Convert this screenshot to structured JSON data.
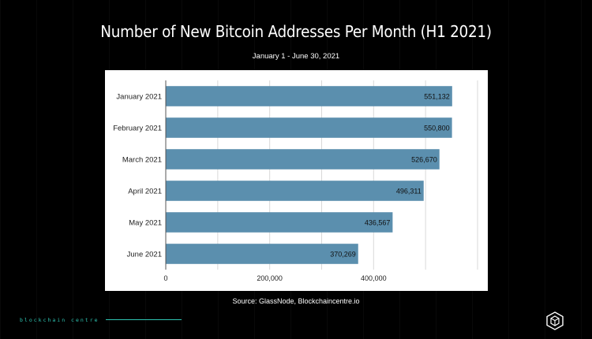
{
  "header": {
    "title": "Number of New Bitcoin Addresses Per Month (H1 2021)",
    "subtitle": "January  1 - June 30, 2021"
  },
  "footer": {
    "source": "Source: GlassNode, Blockchaincentre.io",
    "brand": "blockchain centre",
    "logo_icon": "hexagon-cube-icon"
  },
  "colors": {
    "bar": "#5b8fae",
    "background": "#000000",
    "panel": "#ffffff",
    "accent": "#2fc4b2"
  },
  "chart_data": {
    "type": "bar",
    "orientation": "horizontal",
    "title": "Number of New Bitcoin Addresses Per Month (H1 2021)",
    "subtitle": "January  1 - June 30, 2021",
    "categories": [
      "January 2021",
      "February 2021",
      "March 2021",
      "April 2021",
      "May 2021",
      "June 2021"
    ],
    "values": [
      551132,
      550800,
      526670,
      496311,
      436567,
      370269
    ],
    "value_labels": [
      "551,132",
      "550,800",
      "526,670",
      "496,311",
      "436,567",
      "370,269"
    ],
    "x_ticks": [
      0,
      200000,
      400000
    ],
    "x_tick_labels": [
      "0",
      "200,000",
      "400,000"
    ],
    "xlim": [
      0,
      600000
    ],
    "xlabel": "",
    "ylabel": "",
    "grid": true,
    "legend": "none"
  }
}
